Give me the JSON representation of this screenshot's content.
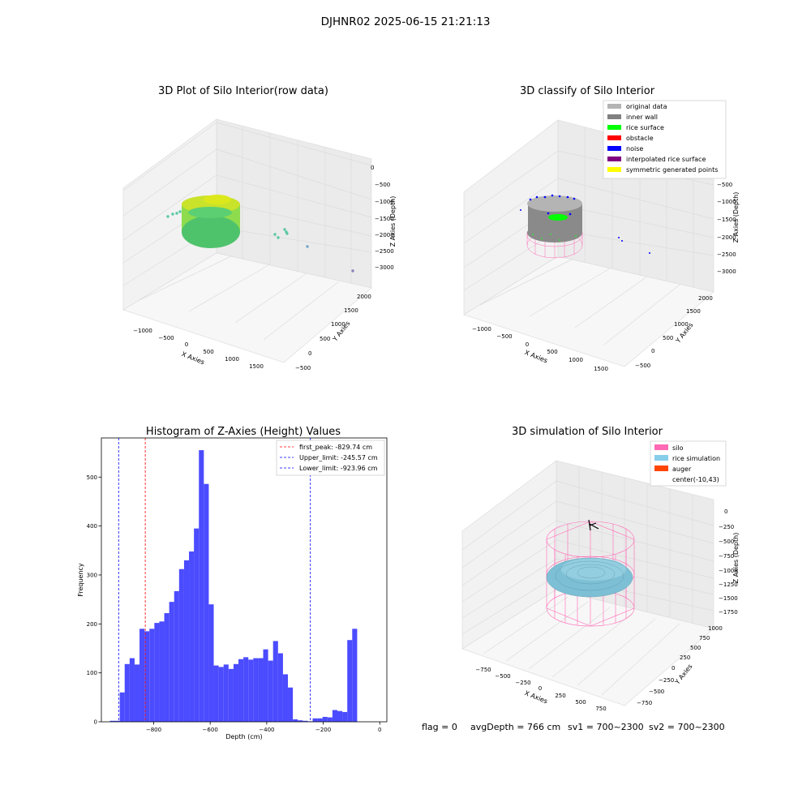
{
  "figure": {
    "suptitle": "DJHNR02 2025-06-15 21:21:13"
  },
  "panel1": {
    "title": "3D Plot of Silo Interior(row data)",
    "xlabel": "X Axies",
    "ylabel": "Y Axies",
    "zlabel": "Z Axies (Depth)",
    "xticks": [
      "−1000",
      "−500",
      "0",
      "500",
      "1000",
      "1500"
    ],
    "yticks": [
      "−500",
      "0",
      "500",
      "1000",
      "1500",
      "2000"
    ],
    "zticks": [
      "0",
      "−500",
      "−1000",
      "−1500",
      "−2000",
      "−2500",
      "−3000"
    ]
  },
  "panel2": {
    "title": "3D classify of Silo Interior",
    "xlabel": "X Axies",
    "ylabel": "Y Axies",
    "zlabel": "Z Axies (Depth)",
    "xticks": [
      "−1000",
      "−500",
      "0",
      "500",
      "1000",
      "1500"
    ],
    "yticks": [
      "−500",
      "0",
      "500",
      "1000",
      "1500",
      "2000"
    ],
    "zticks": [
      "−500",
      "−1000",
      "−1500",
      "−2000",
      "−2500",
      "−3000"
    ],
    "legend": [
      {
        "label": "original data",
        "color": "#b4b4b4"
      },
      {
        "label": "inner wall",
        "color": "#808080"
      },
      {
        "label": "rice surface",
        "color": "#00ff00"
      },
      {
        "label": "obstacle",
        "color": "#ff0000"
      },
      {
        "label": "noise",
        "color": "#0000ff"
      },
      {
        "label": "interpolated rice surface",
        "color": "#800080"
      },
      {
        "label": "symmetric generated points",
        "color": "#ffff00"
      }
    ]
  },
  "panel4": {
    "title": "3D simulation of Silo Interior",
    "xlabel": "X Axies",
    "ylabel": "Y Axies",
    "zlabel": "Z Axies (Depth)",
    "xticks": [
      "−750",
      "−500",
      "−250",
      "0",
      "250",
      "500",
      "750"
    ],
    "yticks": [
      "−750",
      "−500",
      "−250",
      "0",
      "250",
      "500",
      "750",
      "1000"
    ],
    "zticks": [
      "0",
      "−250",
      "−500",
      "−750",
      "−1000",
      "−1250",
      "−1500",
      "−1750"
    ],
    "legend": [
      {
        "label": "silo",
        "color": "#ff69b4"
      },
      {
        "label": "rice simulation",
        "color": "#87ceeb"
      },
      {
        "label": "auger",
        "color": "#ff4500"
      },
      {
        "label": "center(-10,43)",
        "color": "#ffffff"
      }
    ]
  },
  "footer": {
    "flag": "flag = 0",
    "avgdepth": "avgDepth = 766 cm",
    "sv1": "sv1 = 700~2300",
    "sv2": "sv2 = 700~2300"
  },
  "chart_data": [
    {
      "type": "histogram",
      "title": "Histogram of Z-Axies (Height) Values",
      "xlabel": "Depth (cm)",
      "ylabel": "Frequency",
      "xlim": [
        -985,
        25
      ],
      "ylim": [
        0,
        580
      ],
      "xticks": [
        -800,
        -600,
        -400,
        -200,
        0
      ],
      "xtick_labels": [
        "−800",
        "−600",
        "−400",
        "−200",
        "0"
      ],
      "yticks": [
        0,
        100,
        200,
        300,
        400,
        500
      ],
      "bar_color": "#4b4bff",
      "bin_start": -955,
      "bin_width": 17.5,
      "counts": [
        2,
        2,
        60,
        118,
        130,
        117,
        190,
        185,
        190,
        202,
        205,
        222,
        245,
        267,
        312,
        330,
        348,
        395,
        555,
        486,
        240,
        115,
        112,
        117,
        108,
        118,
        128,
        132,
        127,
        130,
        130,
        148,
        125,
        165,
        140,
        97,
        70,
        5,
        3,
        2,
        1,
        7,
        7,
        10,
        9,
        24,
        22,
        20,
        167,
        190
      ],
      "lines": [
        {
          "name": "first_peak: -829.74 cm",
          "x": -829.74,
          "color": "#ff0000"
        },
        {
          "name": "Upper_limit: -245.57 cm",
          "x": -245.57,
          "color": "#0000ff"
        },
        {
          "name": "Lower_limit: -923.96 cm",
          "x": -923.96,
          "color": "#0000ff"
        }
      ],
      "legend_position": "top-right"
    }
  ]
}
